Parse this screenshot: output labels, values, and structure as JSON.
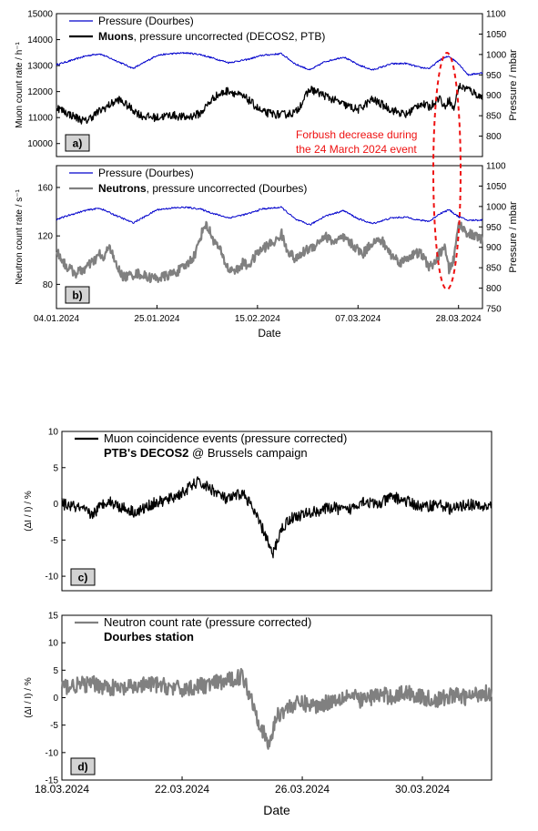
{
  "chart_data": [
    {
      "id": "a",
      "type": "line",
      "panel_label": "a)",
      "ylabel": "Muon count rate / h⁻¹",
      "ylim": [
        9500,
        15000
      ],
      "yticks": [
        "10000",
        "11000",
        "12000",
        "13000",
        "14000",
        "15000"
      ],
      "y2label": "Pressure / mbar",
      "y2lim": [
        750,
        1100
      ],
      "y2ticks": [
        "800",
        "850",
        "900",
        "950",
        "1000",
        "1050",
        "1100"
      ],
      "xlim_day": [
        0,
        89
      ],
      "legend": [
        {
          "label": "Pressure (Dourbes)",
          "color": "#0000cc",
          "bold_part": ""
        },
        {
          "label": ", pressure uncorrected (DECOS2, PTB)",
          "color": "#000000",
          "bold_part": "Muons"
        }
      ],
      "annotation": [
        "Forbush decrease during",
        "the 24 March 2024 event"
      ],
      "annotation_color": "#ee1111",
      "series": [
        {
          "axis": "right",
          "color": "#0000cc",
          "x": [
            0,
            3,
            6,
            9,
            13,
            16,
            18,
            21,
            24,
            27,
            30,
            33,
            36,
            40,
            43,
            47,
            50,
            53,
            56,
            60,
            63,
            66,
            70,
            73,
            76,
            78,
            80,
            82,
            84,
            86,
            89
          ],
          "y": [
            975,
            985,
            996,
            1002,
            982,
            966,
            978,
            998,
            1002,
            1004,
            1000,
            990,
            980,
            988,
            998,
            1002,
            976,
            962,
            982,
            994,
            975,
            962,
            977,
            978,
            968,
            966,
            986,
            996,
            978,
            950,
            955
          ],
          "wiggle": 2
        },
        {
          "axis": "left",
          "color": "#000000",
          "x": [
            0,
            3,
            6,
            9,
            13,
            16,
            18,
            21,
            24,
            27,
            30,
            33,
            36,
            40,
            43,
            47,
            50,
            53,
            56,
            60,
            63,
            66,
            70,
            73,
            76,
            78,
            80,
            81,
            82,
            83,
            84,
            86,
            89
          ],
          "y": [
            11400,
            11100,
            10850,
            11250,
            11700,
            11300,
            11050,
            11000,
            11100,
            11000,
            11150,
            11800,
            12050,
            11700,
            11200,
            11100,
            11200,
            12100,
            11850,
            11500,
            11300,
            11700,
            11300,
            11100,
            11550,
            11400,
            11800,
            11400,
            11700,
            11300,
            12200,
            12100,
            11750
          ],
          "wiggle": 160
        }
      ]
    },
    {
      "id": "b",
      "type": "line",
      "panel_label": "b)",
      "ylabel": "Neutron count rate / s⁻¹",
      "ylim": [
        60,
        178
      ],
      "yticks": [
        "80",
        "120",
        "160"
      ],
      "y2label": "Pressure / mbar",
      "y2lim": [
        750,
        1100
      ],
      "y2ticks": [
        "750",
        "800",
        "850",
        "900",
        "950",
        "1000",
        "1050",
        "1100"
      ],
      "xlabel": "Date",
      "xlim_day": [
        0,
        89
      ],
      "xtick_days": [
        0,
        21,
        42,
        63,
        84
      ],
      "xticklabels": [
        "04.01.2024",
        "25.01.2024",
        "15.02.2024",
        "07.03.2024",
        "28.03.2024"
      ],
      "legend": [
        {
          "label": "Pressure (Dourbes)",
          "color": "#0000cc",
          "bold_part": ""
        },
        {
          "label": ", pressure uncorrected (Dourbes)",
          "color": "#808080",
          "bold_part": "Neutrons"
        }
      ],
      "series": [
        {
          "axis": "right",
          "color": "#0000cc",
          "x": [
            0,
            3,
            6,
            9,
            13,
            16,
            18,
            21,
            24,
            27,
            30,
            33,
            36,
            40,
            43,
            47,
            50,
            53,
            56,
            60,
            63,
            66,
            70,
            73,
            76,
            78,
            80,
            82,
            84,
            86,
            89
          ],
          "y": [
            968,
            980,
            990,
            996,
            975,
            960,
            972,
            992,
            996,
            998,
            994,
            982,
            972,
            982,
            994,
            998,
            968,
            955,
            976,
            990,
            970,
            958,
            972,
            974,
            966,
            964,
            982,
            992,
            975,
            966,
            967
          ],
          "wiggle": 2
        },
        {
          "axis": "left",
          "color": "#808080",
          "x": [
            0,
            2,
            4,
            6,
            8,
            9,
            10,
            11,
            12,
            13,
            14,
            15,
            17,
            19,
            21,
            23,
            25,
            27,
            29,
            30,
            31,
            32,
            33,
            34,
            35,
            36,
            38,
            39,
            40,
            41,
            42,
            44,
            46,
            47,
            48,
            50,
            52,
            54,
            56,
            58,
            60,
            62,
            64,
            66,
            68,
            70,
            72,
            74,
            76,
            77,
            78,
            79,
            80,
            81,
            82,
            83,
            84,
            86,
            89
          ],
          "y": [
            108,
            95,
            89,
            93,
            100,
            105,
            100,
            114,
            100,
            92,
            86,
            87,
            89,
            86,
            85,
            87,
            90,
            95,
            105,
            118,
            130,
            124,
            115,
            110,
            100,
            92,
            92,
            98,
            95,
            100,
            106,
            112,
            116,
            122,
            110,
            100,
            108,
            112,
            120,
            115,
            118,
            112,
            105,
            115,
            116,
            104,
            98,
            104,
            106,
            100,
            94,
            98,
            105,
            112,
            92,
            100,
            130,
            122,
            117
          ],
          "wiggle": 4
        }
      ]
    },
    {
      "id": "c",
      "type": "line",
      "panel_label": "c)",
      "ylabel": "(ΔI / I) / %",
      "ylim": [
        -12,
        10
      ],
      "yticks": [
        "-10",
        "-5",
        "0",
        "5",
        "10"
      ],
      "xlim_day": [
        0,
        14.3
      ],
      "legend": [
        {
          "label": "Muon coincidence events (pressure corrected)",
          "color": "#000000",
          "bold_part": ""
        }
      ],
      "subtitle": "PTB's DECOS2",
      "subtitle_rest": " @ Brussels campaign",
      "series": [
        {
          "axis": "left",
          "color": "#000000",
          "x": [
            0,
            0.5,
            1,
            1.5,
            2,
            2.5,
            3,
            3.5,
            4,
            4.5,
            5,
            5.5,
            6,
            6.2,
            6.5,
            6.8,
            7.0,
            7.3,
            7.6,
            8,
            8.5,
            9,
            9.5,
            10,
            10.5,
            11,
            11.5,
            12,
            12.5,
            13,
            13.5,
            14,
            14.3
          ],
          "y": [
            0,
            -0.5,
            -1.5,
            0.5,
            -0.5,
            -1.2,
            0,
            0.5,
            1.5,
            3,
            2,
            0.5,
            1.5,
            0.5,
            -2,
            -4.5,
            -7.2,
            -3.5,
            -2,
            -1.5,
            -1,
            -0.5,
            -1,
            0.5,
            -0.2,
            1,
            0.3,
            -0.5,
            0,
            -0.8,
            0,
            -0.5,
            -0.2
          ],
          "wiggle": 0.8
        }
      ]
    },
    {
      "id": "d",
      "type": "line",
      "panel_label": "d)",
      "ylabel": "(ΔI / I) / %",
      "ylim": [
        -15,
        15
      ],
      "yticks": [
        "-15",
        "-10",
        "-5",
        "0",
        "5",
        "10",
        "15"
      ],
      "xlabel": "Date",
      "xlim_day": [
        0,
        14.3
      ],
      "xtick_days": [
        0,
        4,
        8,
        12
      ],
      "xticklabels": [
        "18.03.2024",
        "22.03.2024",
        "26.03.2024",
        "30.03.2024"
      ],
      "legend": [
        {
          "label": "Neutron count rate (pressure corrected)",
          "color": "#808080",
          "bold_part": ""
        }
      ],
      "subtitle": "Dourbes station",
      "subtitle_rest": "",
      "series": [
        {
          "axis": "left",
          "color": "#808080",
          "x": [
            0,
            1,
            2,
            3,
            4,
            5,
            5.5,
            6,
            6.3,
            6.6,
            6.9,
            7.1,
            7.3,
            7.6,
            8,
            8.5,
            9,
            9.5,
            10,
            10.5,
            11,
            11.5,
            12,
            12.5,
            13,
            13.5,
            14,
            14.3
          ],
          "y": [
            2,
            2.5,
            1.5,
            2.5,
            1.5,
            2.5,
            3,
            4,
            0,
            -5,
            -9,
            -4,
            -2.5,
            -1.5,
            -1,
            -1.5,
            -0.5,
            0.5,
            -0.5,
            0.5,
            0.2,
            1,
            0,
            -0.5,
            0.5,
            0,
            1,
            0.8
          ],
          "wiggle": 1.5
        }
      ]
    }
  ]
}
